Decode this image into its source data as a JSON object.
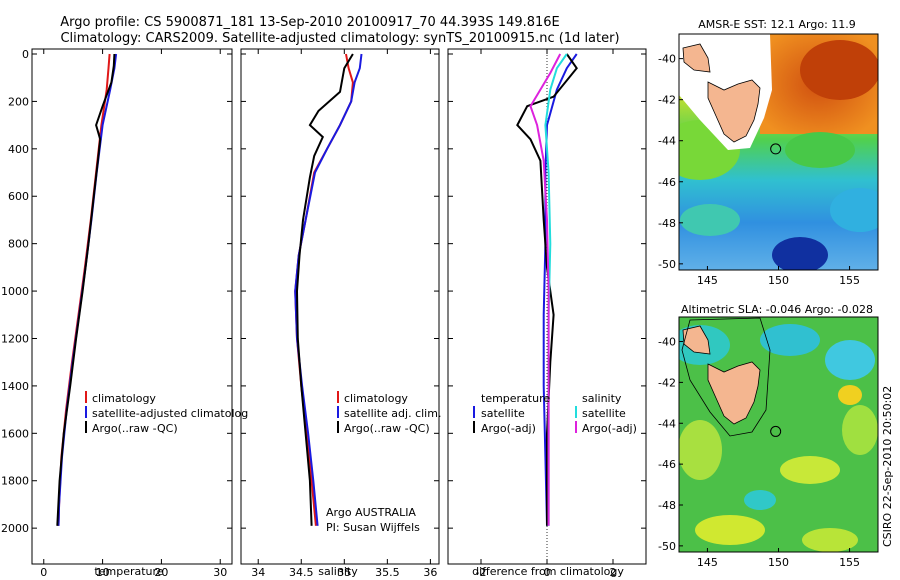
{
  "header": {
    "title_line1": "Argo profile: CS 5900871_181 13-Sep-2010 20100917_70 44.393S 149.816E",
    "title_line2": "Climatology: CARS2009. Satellite-adjusted climatology: synTS_20100915.nc (1d later)"
  },
  "credit": {
    "program": "Argo AUSTRALIA",
    "pi": "PI: Susan Wijffels",
    "footer": "CSIRO 22-Sep-2010 20:50:02"
  },
  "colors": {
    "climatology": "#e01818",
    "satellite": "#1a1ae0",
    "argo": "#000000",
    "sat_salinity": "#22dddd",
    "argo_salinity": "#dd22dd",
    "land": "#f4b690"
  },
  "chart_data": [
    {
      "type": "line",
      "name": "temperature-profile",
      "xlabel": "temperature",
      "xlim": [
        -2,
        32
      ],
      "ylim": [
        0,
        2050
      ],
      "y_reversed": true,
      "xticks": [
        "0",
        "10",
        "20",
        "30"
      ],
      "yticks": [
        "0",
        "200",
        "400",
        "600",
        "800",
        "1000",
        "1200",
        "1400",
        "1600",
        "1800",
        "2000"
      ],
      "legend": [
        "climatology",
        "satellite-adjusted climatolog",
        "Argo(..raw -QC)"
      ],
      "legend_position": "lower-right",
      "series": [
        {
          "name": "climatology",
          "color": "#e01818",
          "points": [
            [
              11.2,
              0
            ],
            [
              11.0,
              60
            ],
            [
              10.7,
              150
            ],
            [
              9.8,
              300
            ],
            [
              8.9,
              500
            ],
            [
              8.0,
              700
            ],
            [
              7.0,
              900
            ],
            [
              5.9,
              1100
            ],
            [
              4.8,
              1300
            ],
            [
              3.8,
              1500
            ],
            [
              3.0,
              1700
            ],
            [
              2.6,
              1900
            ],
            [
              2.5,
              1990
            ]
          ]
        },
        {
          "name": "satellite-adjusted climatolog",
          "color": "#1a1ae0",
          "points": [
            [
              12.3,
              0
            ],
            [
              12.0,
              60
            ],
            [
              11.3,
              150
            ],
            [
              10.0,
              300
            ],
            [
              9.0,
              500
            ],
            [
              8.1,
              700
            ],
            [
              7.1,
              900
            ],
            [
              6.0,
              1100
            ],
            [
              4.9,
              1300
            ],
            [
              3.9,
              1500
            ],
            [
              3.1,
              1700
            ],
            [
              2.6,
              1900
            ],
            [
              2.5,
              1990
            ]
          ]
        },
        {
          "name": "Argo(..raw -QC)",
          "color": "#000000",
          "points": [
            [
              12.0,
              0
            ],
            [
              11.9,
              50
            ],
            [
              11.5,
              120
            ],
            [
              10.0,
              220
            ],
            [
              8.9,
              300
            ],
            [
              9.6,
              360
            ],
            [
              9.2,
              450
            ],
            [
              8.5,
              600
            ],
            [
              7.6,
              800
            ],
            [
              6.6,
              1000
            ],
            [
              5.5,
              1200
            ],
            [
              4.5,
              1400
            ],
            [
              3.4,
              1600
            ],
            [
              2.7,
              1800
            ],
            [
              2.3,
              1990
            ]
          ]
        }
      ]
    },
    {
      "type": "line",
      "name": "salinity-profile",
      "xlabel": "salinity",
      "xlim": [
        33.8,
        36.1
      ],
      "ylim": [
        0,
        2050
      ],
      "y_reversed": true,
      "xticks": [
        "34",
        "34.5",
        "35",
        "35.5",
        "36"
      ],
      "legend": [
        "climatology",
        "satellite adj. clim.",
        "Argo(..raw -QC)"
      ],
      "legend_position": "lower-right",
      "series": [
        {
          "name": "climatology",
          "color": "#e01818",
          "points": [
            [
              35.02,
              0
            ],
            [
              35.05,
              60
            ],
            [
              35.1,
              120
            ],
            [
              35.08,
              200
            ],
            [
              34.95,
              300
            ],
            [
              34.8,
              400
            ],
            [
              34.65,
              500
            ],
            [
              34.55,
              700
            ],
            [
              34.47,
              850
            ],
            [
              34.43,
              1000
            ],
            [
              34.45,
              1200
            ],
            [
              34.5,
              1400
            ],
            [
              34.56,
              1600
            ],
            [
              34.62,
              1800
            ],
            [
              34.67,
              1990
            ]
          ]
        },
        {
          "name": "satellite adj. clim.",
          "color": "#1a1ae0",
          "points": [
            [
              35.2,
              0
            ],
            [
              35.18,
              60
            ],
            [
              35.12,
              120
            ],
            [
              35.08,
              200
            ],
            [
              34.95,
              300
            ],
            [
              34.8,
              400
            ],
            [
              34.66,
              500
            ],
            [
              34.55,
              700
            ],
            [
              34.47,
              850
            ],
            [
              34.43,
              1000
            ],
            [
              34.45,
              1200
            ],
            [
              34.51,
              1400
            ],
            [
              34.58,
              1600
            ],
            [
              34.64,
              1800
            ],
            [
              34.69,
              1990
            ]
          ]
        },
        {
          "name": "Argo(..raw -QC)",
          "color": "#000000",
          "points": [
            [
              35.1,
              0
            ],
            [
              35.0,
              60
            ],
            [
              34.95,
              160
            ],
            [
              34.7,
              240
            ],
            [
              34.6,
              300
            ],
            [
              34.75,
              350
            ],
            [
              34.65,
              430
            ],
            [
              34.6,
              520
            ],
            [
              34.52,
              700
            ],
            [
              34.48,
              850
            ],
            [
              34.45,
              1000
            ],
            [
              34.46,
              1200
            ],
            [
              34.5,
              1400
            ],
            [
              34.55,
              1600
            ],
            [
              34.6,
              1800
            ],
            [
              34.62,
              1990
            ]
          ]
        }
      ]
    },
    {
      "type": "line",
      "name": "difference-profile",
      "xlabel": "difference from climatology",
      "xlim": [
        -3,
        3
      ],
      "ylim": [
        0,
        2050
      ],
      "y_reversed": true,
      "xticks": [
        "-2",
        "0",
        "2"
      ],
      "legend_left_title": "temperature",
      "legend_right_title": "salinity",
      "legend": [
        "satellite",
        "Argo(-adj)",
        "satellite",
        "Argo(-adj)"
      ],
      "legend_position": "lower-center",
      "series": [
        {
          "name": "temperature satellite",
          "color": "#1a1ae0",
          "points": [
            [
              0.9,
              0
            ],
            [
              0.6,
              60
            ],
            [
              0.3,
              150
            ],
            [
              0.0,
              300
            ],
            [
              -0.05,
              500
            ],
            [
              -0.05,
              800
            ],
            [
              -0.1,
              1100
            ],
            [
              -0.1,
              1400
            ],
            [
              -0.05,
              1700
            ],
            [
              0.0,
              1990
            ]
          ]
        },
        {
          "name": "temperature Argo(-adj)",
          "color": "#000000",
          "points": [
            [
              0.6,
              0
            ],
            [
              0.9,
              60
            ],
            [
              0.2,
              180
            ],
            [
              -0.6,
              220
            ],
            [
              -0.9,
              300
            ],
            [
              -0.5,
              360
            ],
            [
              -0.2,
              450
            ],
            [
              -0.1,
              700
            ],
            [
              0.0,
              900
            ],
            [
              0.2,
              1100
            ],
            [
              0.1,
              1300
            ],
            [
              0.0,
              1600
            ],
            [
              0.0,
              1990
            ]
          ]
        },
        {
          "name": "salinity satellite",
          "color": "#22dddd",
          "points": [
            [
              0.6,
              0
            ],
            [
              0.3,
              60
            ],
            [
              0.1,
              150
            ],
            [
              -0.05,
              300
            ],
            [
              0.05,
              500
            ],
            [
              0.1,
              800
            ],
            [
              0.05,
              1100
            ],
            [
              0.05,
              1500
            ],
            [
              0.05,
              1990
            ]
          ]
        },
        {
          "name": "salinity Argo(-adj)",
          "color": "#dd22dd",
          "points": [
            [
              0.4,
              0
            ],
            [
              0.1,
              80
            ],
            [
              -0.2,
              150
            ],
            [
              -0.5,
              220
            ],
            [
              -0.3,
              300
            ],
            [
              -0.1,
              450
            ],
            [
              0.0,
              700
            ],
            [
              0.05,
              1000
            ],
            [
              0.05,
              1400
            ],
            [
              0.05,
              1990
            ]
          ]
        }
      ]
    },
    {
      "type": "heatmap",
      "name": "amsre-sst-map",
      "title": "AMSR-E SST: 12.1 Argo: 11.9",
      "xlim": [
        143,
        157
      ],
      "ylim": [
        -50.3,
        -38.8
      ],
      "xticks": [
        "145",
        "150",
        "155"
      ],
      "yticks": [
        "-40",
        "-42",
        "-44",
        "-46",
        "-48",
        "-50"
      ],
      "argo_position": {
        "lon": 149.8,
        "lat": -44.4
      }
    },
    {
      "type": "heatmap",
      "name": "altimetric-sla-map",
      "title": "Altimetric SLA: -0.046 Argo: -0.028",
      "xlim": [
        143,
        157
      ],
      "ylim": [
        -50.3,
        -38.8
      ],
      "xticks": [
        "145",
        "150",
        "155"
      ],
      "yticks": [
        "-40",
        "-42",
        "-44",
        "-46",
        "-48",
        "-50"
      ],
      "argo_position": {
        "lon": 149.8,
        "lat": -44.4
      }
    }
  ]
}
